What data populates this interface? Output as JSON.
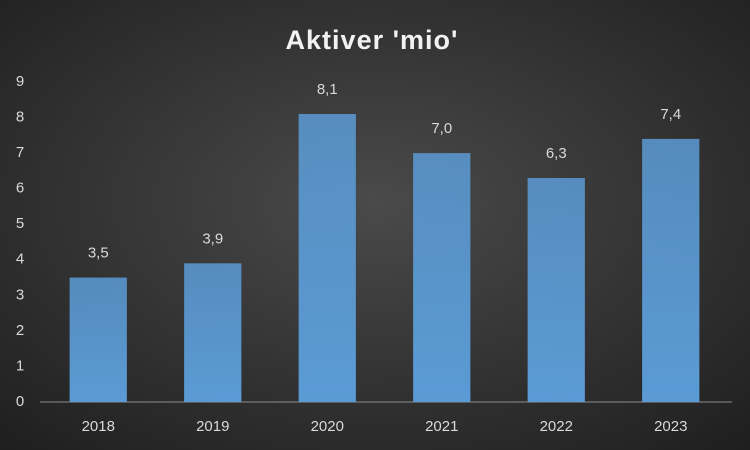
{
  "chart_data": {
    "type": "bar",
    "title": "Aktiver 'mio'",
    "categories": [
      "2018",
      "2019",
      "2020",
      "2021",
      "2022",
      "2023"
    ],
    "values": [
      3.5,
      3.9,
      8.1,
      7.0,
      6.3,
      7.4
    ],
    "value_labels": [
      "3,5",
      "3,9",
      "8,1",
      "7,0",
      "6,3",
      "7,4"
    ],
    "color": "#5b9bd5",
    "ylim": [
      0,
      9
    ],
    "yticks": [
      0,
      1,
      2,
      3,
      4,
      5,
      6,
      7,
      8,
      9
    ],
    "grid": false
  }
}
